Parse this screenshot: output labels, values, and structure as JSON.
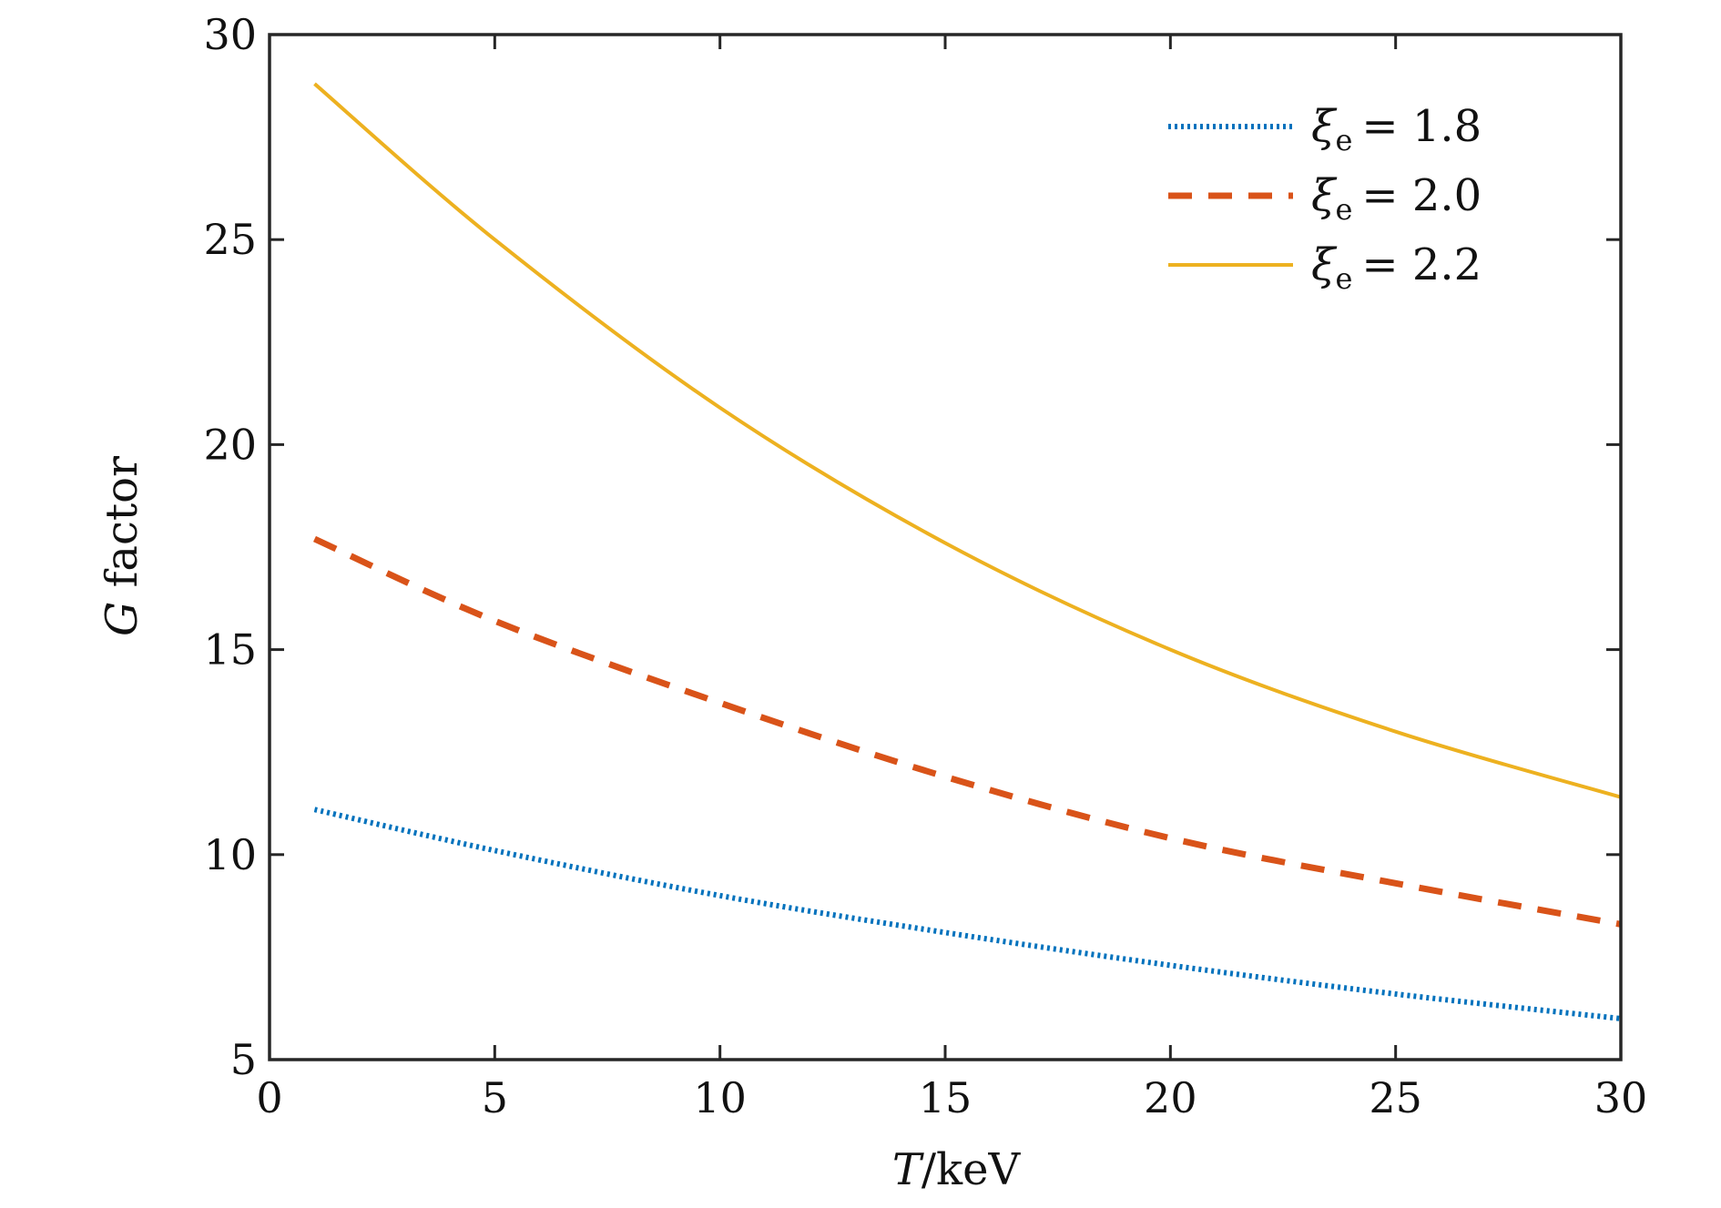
{
  "chart_data": {
    "type": "line",
    "title": "",
    "xlabel": "T/keV",
    "ylabel": "G factor",
    "xlim": [
      0,
      30
    ],
    "ylim": [
      5,
      30
    ],
    "xticks": [
      0,
      5,
      10,
      15,
      20,
      25,
      30
    ],
    "yticks": [
      5,
      10,
      15,
      20,
      25,
      30
    ],
    "xtick_labels": [
      "0",
      "5",
      "10",
      "15",
      "20",
      "25",
      "30"
    ],
    "ytick_labels": [
      "5",
      "10",
      "15",
      "20",
      "25",
      "30"
    ],
    "grid": false,
    "legend_position": "top-right",
    "x": [
      1,
      5,
      10,
      15,
      20,
      25,
      30
    ],
    "series": [
      {
        "name": "ξe = 1.8",
        "name_parts": {
          "symbol": "ξ",
          "subscript": "e",
          "relation": "= 1.8"
        },
        "values": [
          11.1,
          10.1,
          9.0,
          8.1,
          7.3,
          6.6,
          6.0
        ],
        "color": "#0072BD",
        "style": "dotted"
      },
      {
        "name": "ξe = 2.0",
        "name_parts": {
          "symbol": "ξ",
          "subscript": "e",
          "relation": "= 2.0"
        },
        "values": [
          17.7,
          15.7,
          13.7,
          11.9,
          10.4,
          9.3,
          8.3
        ],
        "color": "#D95319",
        "style": "dashed"
      },
      {
        "name": "ξe = 2.2",
        "name_parts": {
          "symbol": "ξ",
          "subscript": "e",
          "relation": "= 2.2"
        },
        "values": [
          28.8,
          25.0,
          20.9,
          17.6,
          15.0,
          13.0,
          11.4
        ],
        "color": "#EDB120",
        "style": "solid"
      }
    ]
  }
}
